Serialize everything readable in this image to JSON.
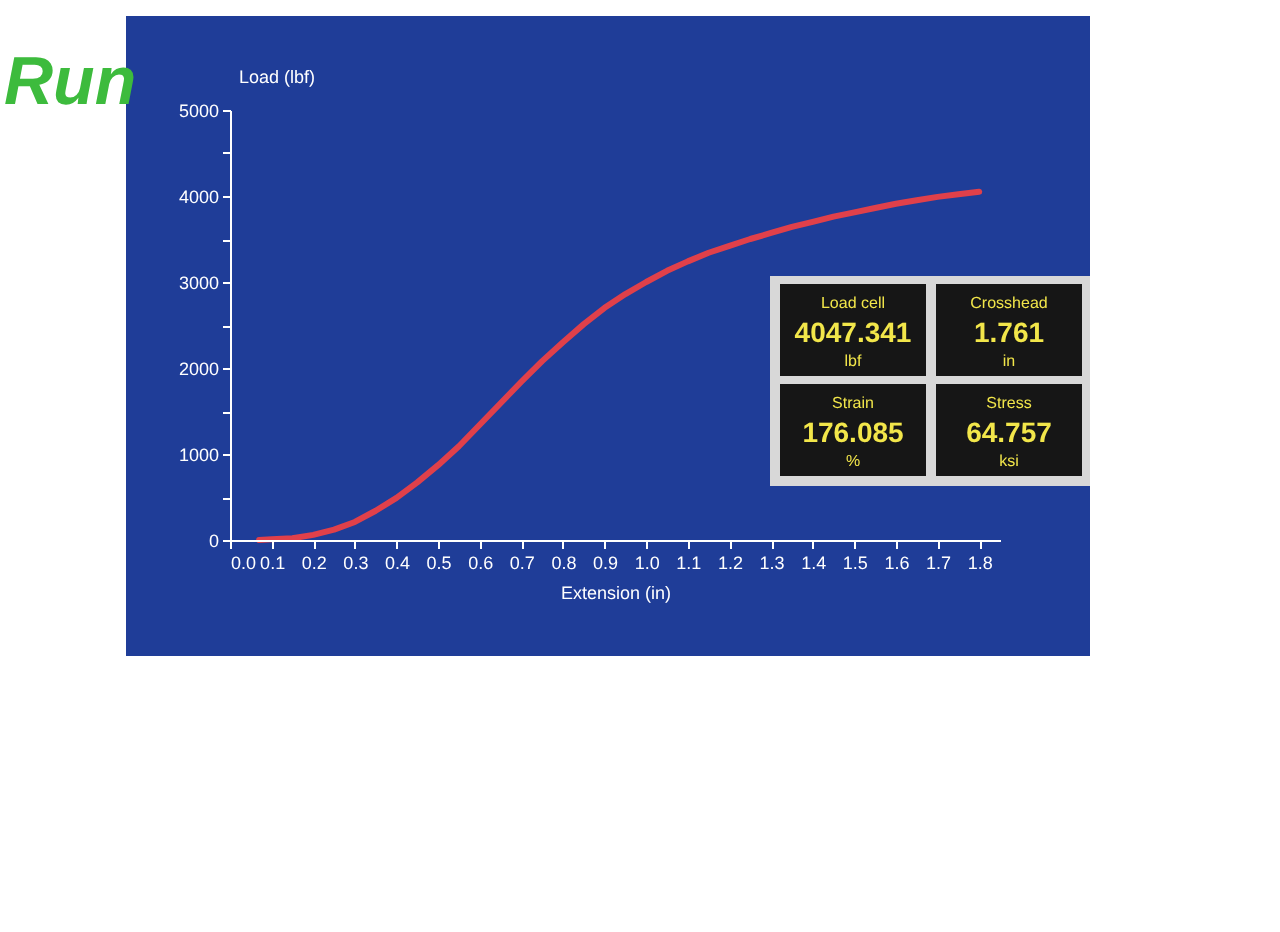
{
  "chart_data": {
    "type": "line",
    "xlabel": "Extension (in)",
    "ylabel": "Load (lbf)",
    "x": [
      0.07,
      0.1,
      0.15,
      0.2,
      0.25,
      0.3,
      0.35,
      0.4,
      0.45,
      0.5,
      0.55,
      0.6,
      0.65,
      0.7,
      0.75,
      0.8,
      0.85,
      0.9,
      0.95,
      1.0,
      1.05,
      1.1,
      1.15,
      1.2,
      1.25,
      1.3,
      1.35,
      1.4,
      1.45,
      1.5,
      1.55,
      1.6,
      1.65,
      1.7,
      1.75,
      1.8
    ],
    "series": [
      {
        "color": "#e0404a",
        "values": [
          0,
          10,
          20,
          60,
          120,
          210,
          340,
          490,
          670,
          870,
          1090,
          1340,
          1590,
          1840,
          2080,
          2300,
          2510,
          2700,
          2860,
          3000,
          3130,
          3240,
          3340,
          3420,
          3500,
          3570,
          3640,
          3700,
          3760,
          3810,
          3860,
          3910,
          3950,
          3990,
          4020,
          4050
        ]
      }
    ],
    "xlim": [
      0,
      1.85
    ],
    "xticks": [
      {
        "value": 0,
        "label": "0.0"
      },
      0.1,
      0.2,
      0.3,
      0.4,
      0.5,
      0.6,
      0.7,
      0.8,
      0.9,
      {
        "value": 1,
        "label": "1.0"
      },
      1.1,
      1.2,
      1.3,
      1.4,
      1.5,
      1.6,
      1.7,
      1.8
    ],
    "ylim": [
      0,
      5000
    ],
    "yticks": [
      0,
      {
        "value": 500,
        "label": null
      },
      1000,
      {
        "value": 1500,
        "label": null
      },
      2000,
      {
        "value": 2500,
        "label": null
      },
      3000,
      {
        "value": 3500,
        "label": null
      },
      4000,
      {
        "value": 4500,
        "label": null
      },
      5000
    ],
    "grid": false,
    "marker": "none",
    "line_style": "solid",
    "annotations": [
      "Run",
      "Load cell",
      "4047.341",
      "lbf",
      "Crosshead",
      "1.761",
      "in",
      "Strain",
      "176.085",
      "%",
      "Stress",
      "64.757",
      "ksi"
    ]
  }
}
